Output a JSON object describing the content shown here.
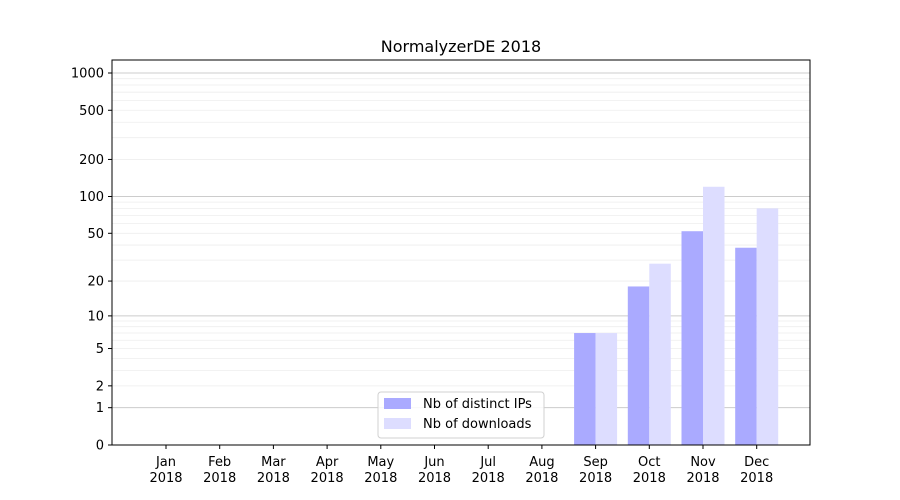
{
  "chart_data": {
    "type": "bar",
    "title": "NormalyzerDE 2018",
    "xlabel": "",
    "ylabel": "",
    "yscale": "log1p",
    "ylim": [
      0,
      1200
    ],
    "y_ticks": [
      0,
      1,
      2,
      5,
      10,
      20,
      50,
      100,
      200,
      500,
      1000
    ],
    "grid": "y",
    "legend_placement": "lower-center",
    "categories": [
      [
        "Jan",
        "2018"
      ],
      [
        "Feb",
        "2018"
      ],
      [
        "Mar",
        "2018"
      ],
      [
        "Apr",
        "2018"
      ],
      [
        "May",
        "2018"
      ],
      [
        "Jun",
        "2018"
      ],
      [
        "Jul",
        "2018"
      ],
      [
        "Aug",
        "2018"
      ],
      [
        "Sep",
        "2018"
      ],
      [
        "Oct",
        "2018"
      ],
      [
        "Nov",
        "2018"
      ],
      [
        "Dec",
        "2018"
      ]
    ],
    "series": [
      {
        "name": "Nb of distinct IPs",
        "color": "#aaaaff",
        "values": [
          0,
          0,
          0,
          0,
          0,
          0,
          0,
          0,
          7,
          18,
          52,
          38
        ]
      },
      {
        "name": "Nb of downloads",
        "color": "#ddddff",
        "values": [
          0,
          0,
          0,
          0,
          0,
          0,
          0,
          0,
          7,
          28,
          120,
          80
        ]
      }
    ]
  }
}
